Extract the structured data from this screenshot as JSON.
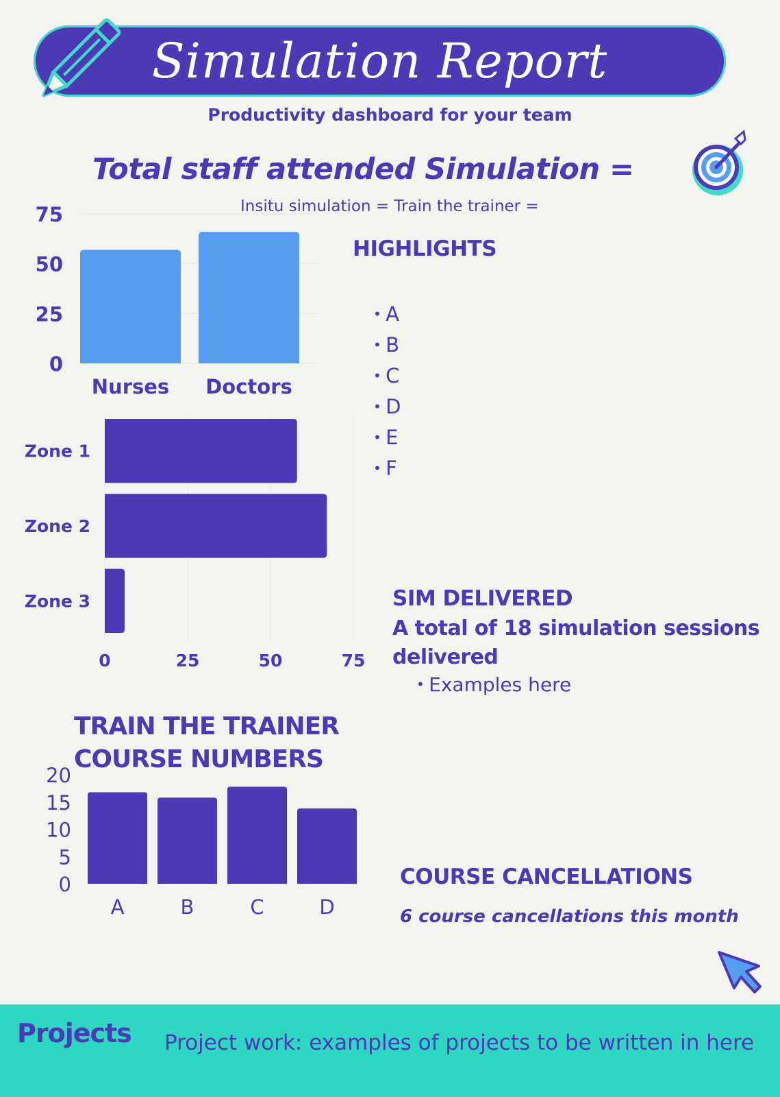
{
  "header": {
    "title": "Simulation Report",
    "subtitle": "Productivity dashboard for your team"
  },
  "summary": {
    "total_heading": "Total staff attended Simulation =",
    "counts_line": "Insitu simulation =  Train the trainer ="
  },
  "highlights": {
    "heading": "HIGHLIGHTS",
    "items": [
      "A",
      "B",
      "C",
      "D",
      "E",
      "F"
    ]
  },
  "sim_delivered": {
    "heading": "SIM DELIVERED",
    "text": "A total of 18 simulation sessions delivered",
    "example": "Examples here"
  },
  "train_the_trainer": {
    "heading_line1": "TRAIN THE TRAINER",
    "heading_line2": "COURSE NUMBERS"
  },
  "cancellations": {
    "heading": "COURSE CANCELLATIONS",
    "text": "6 course cancellations this month"
  },
  "footer": {
    "label": "Projects",
    "text": "Project work: examples of projects to be written in here"
  },
  "icons": [
    "pencil-icon",
    "target-icon",
    "cursor-icon"
  ],
  "colors": {
    "primary": "#4b39b5",
    "bar_blue": "#569cf0",
    "accent": "#2fd6c4",
    "background": "#f3f4ef"
  },
  "chart_data": [
    {
      "type": "bar",
      "orientation": "vertical",
      "categories": [
        "Nurses",
        "Doctors"
      ],
      "values": [
        57,
        66
      ],
      "ylim": [
        0,
        75
      ],
      "yticks": [
        0,
        25,
        50,
        75
      ],
      "grid": true,
      "color": "#569cf0"
    },
    {
      "type": "bar",
      "orientation": "horizontal",
      "categories": [
        "Zone 1",
        "Zone 2",
        "Zone 3"
      ],
      "values": [
        58,
        67,
        6
      ],
      "xlim": [
        0,
        75
      ],
      "xticks": [
        0,
        25,
        50,
        75
      ],
      "grid": true,
      "color": "#4b39b5"
    },
    {
      "type": "bar",
      "orientation": "vertical",
      "categories": [
        "A",
        "B",
        "C",
        "D"
      ],
      "values": [
        16.8,
        15.8,
        17.8,
        13.8
      ],
      "ylim": [
        0,
        20
      ],
      "yticks": [
        0,
        5,
        10,
        15,
        20
      ],
      "grid": false,
      "color": "#4b39b5"
    }
  ]
}
